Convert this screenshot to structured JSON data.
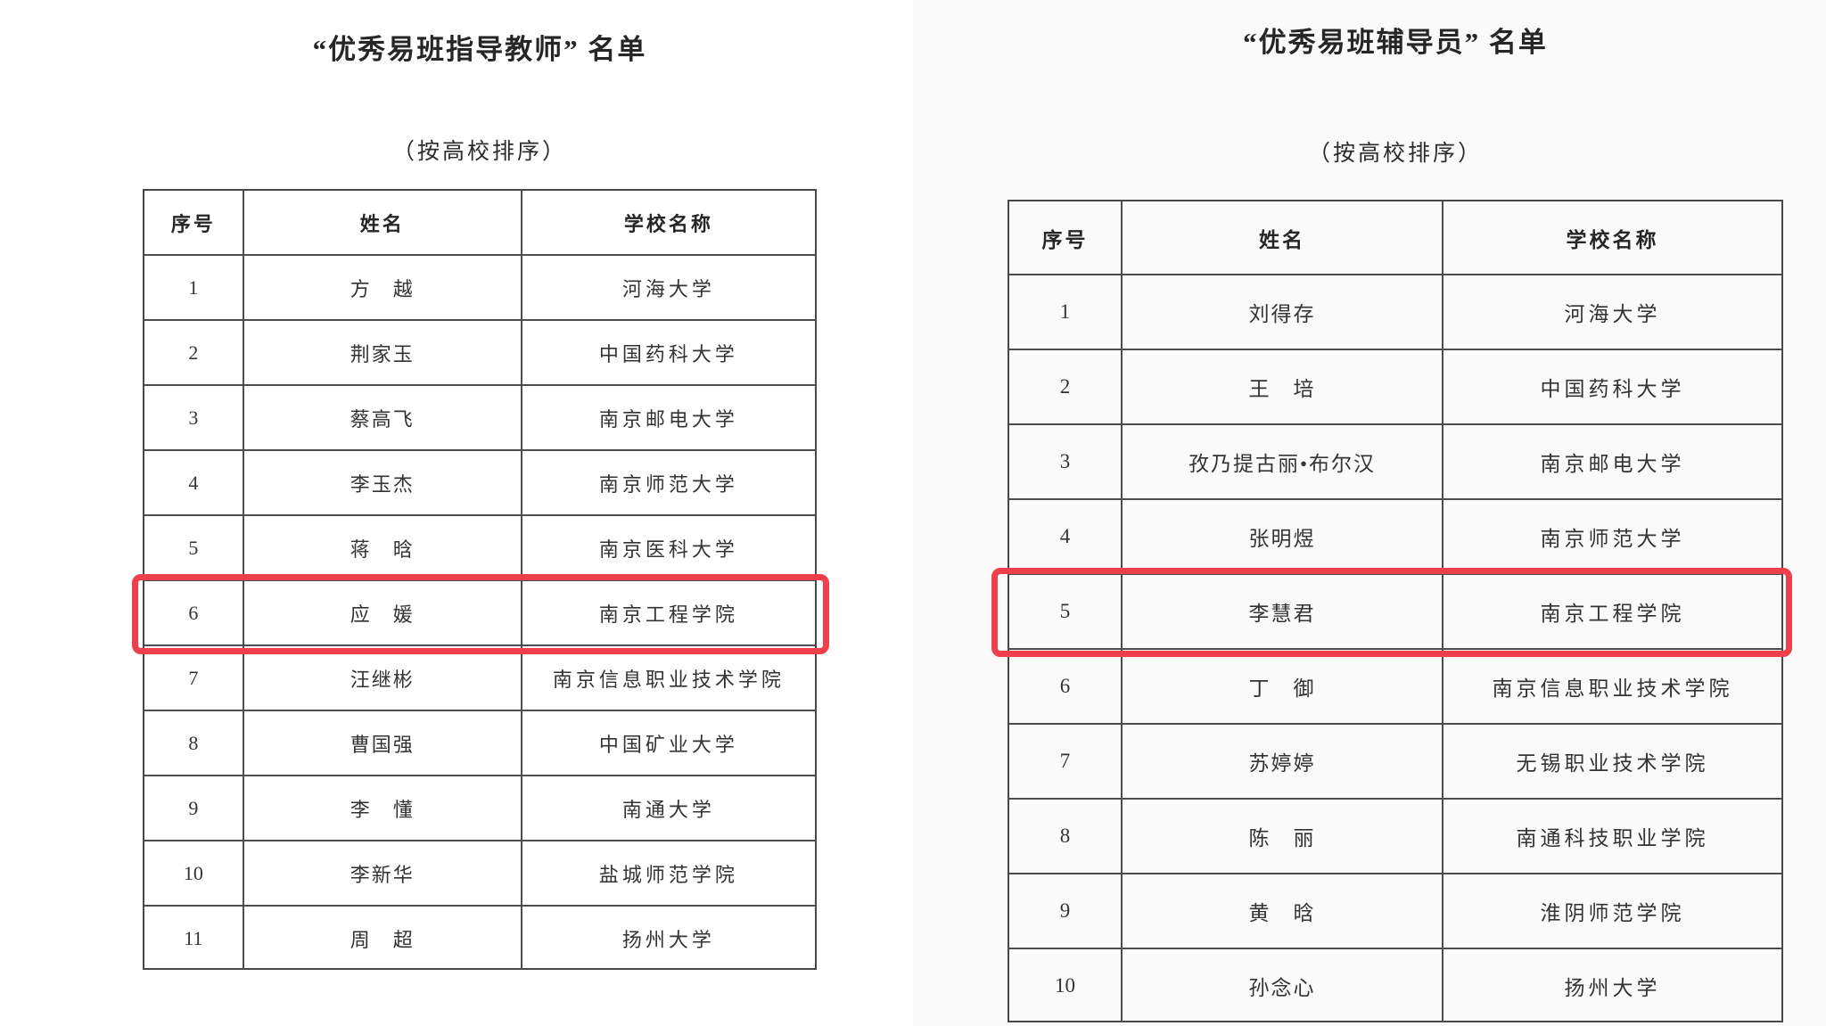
{
  "left_page": {
    "title": "“优秀易班指导教师” 名单",
    "subtitle": "（按高校排序）",
    "table": {
      "headers": {
        "no": "序号",
        "name": "姓名",
        "school": "学校名称"
      },
      "rows": [
        {
          "no": "1",
          "name": "方　越",
          "school": "河海大学"
        },
        {
          "no": "2",
          "name": "荆家玉",
          "school": "中国药科大学"
        },
        {
          "no": "3",
          "name": "蔡高飞",
          "school": "南京邮电大学"
        },
        {
          "no": "4",
          "name": "李玉杰",
          "school": "南京师范大学"
        },
        {
          "no": "5",
          "name": "蒋　晗",
          "school": "南京医科大学"
        },
        {
          "no": "6",
          "name": "应　媛",
          "school": "南京工程学院"
        },
        {
          "no": "7",
          "name": "汪继彬",
          "school": "南京信息职业技术学院"
        },
        {
          "no": "8",
          "name": "曹国强",
          "school": "中国矿业大学"
        },
        {
          "no": "9",
          "name": "李　懂",
          "school": "南通大学"
        },
        {
          "no": "10",
          "name": "李新华",
          "school": "盐城师范学院"
        },
        {
          "no": "11",
          "name": "周　超",
          "school": "扬州大学"
        }
      ],
      "highlighted_row_no": "6",
      "highlight_color": "#ee3f4d"
    }
  },
  "right_page": {
    "title": "“优秀易班辅导员” 名单",
    "subtitle": "（按高校排序）",
    "table": {
      "headers": {
        "no": "序号",
        "name": "姓名",
        "school": "学校名称"
      },
      "rows": [
        {
          "no": "1",
          "name": "刘得存",
          "school": "河海大学"
        },
        {
          "no": "2",
          "name": "王　培",
          "school": "中国药科大学"
        },
        {
          "no": "3",
          "name": "孜乃提古丽•布尔汉",
          "school": "南京邮电大学"
        },
        {
          "no": "4",
          "name": "张明煜",
          "school": "南京师范大学"
        },
        {
          "no": "5",
          "name": "李慧君",
          "school": "南京工程学院"
        },
        {
          "no": "6",
          "name": "丁　御",
          "school": "南京信息职业技术学院"
        },
        {
          "no": "7",
          "name": "苏婷婷",
          "school": "无锡职业技术学院"
        },
        {
          "no": "8",
          "name": "陈　丽",
          "school": "南通科技职业学院"
        },
        {
          "no": "9",
          "name": "黄　晗",
          "school": "淮阴师范学院"
        },
        {
          "no": "10",
          "name": "孙念心",
          "school": "扬州大学"
        }
      ],
      "highlighted_row_no": "5",
      "highlight_color": "#ee3f4d"
    }
  }
}
